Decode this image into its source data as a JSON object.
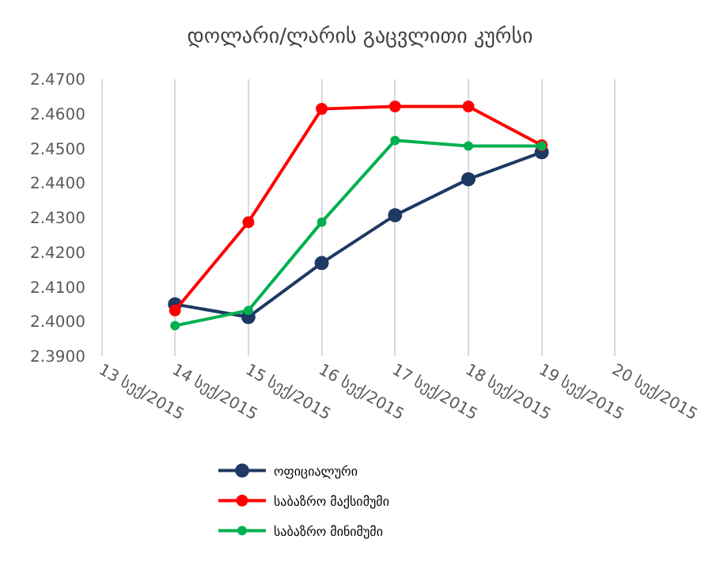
{
  "chart_data": {
    "type": "line",
    "title": "დოლარი/ლარის გაცვლითი კურსი",
    "categories": [
      "13 სექ/2015",
      "14 სექ/2015",
      "15 სექ/2015",
      "16 სექ/2015",
      "17 სექ/2015",
      "18 სექ/2015",
      "19 სექ/2015",
      "20 სექ/2015"
    ],
    "series": [
      {
        "name": "ოფიციალური",
        "color": "#1f3864",
        "values": [
          null,
          2.405,
          2.4013,
          2.4169,
          2.4307,
          2.4411,
          2.4489,
          null
        ]
      },
      {
        "name": "საბაზრო მაქსიმუმი",
        "color": "#ff0000",
        "values": [
          null,
          2.4032,
          2.4287,
          2.4614,
          2.4621,
          2.4621,
          2.4509,
          null
        ]
      },
      {
        "name": "საბაზრო მინიმუმი",
        "color": "#00b050",
        "values": [
          null,
          2.3988,
          2.4032,
          2.4287,
          2.4523,
          2.4507,
          2.4507,
          null
        ]
      }
    ],
    "ylim": [
      2.39,
      2.47
    ],
    "yticks": [
      {
        "value": 2.39,
        "label": "2.3900"
      },
      {
        "value": 2.4,
        "label": "2.4000"
      },
      {
        "value": 2.41,
        "label": "2.4100"
      },
      {
        "value": 2.42,
        "label": "2.4200"
      },
      {
        "value": 2.43,
        "label": "2.4300"
      },
      {
        "value": 2.44,
        "label": "2.4400"
      },
      {
        "value": 2.45,
        "label": "2.4500"
      },
      {
        "value": 2.46,
        "label": "2.4600"
      },
      {
        "value": 2.47,
        "label": "2.4700"
      }
    ],
    "grid": "x",
    "legend": "bottom",
    "marker": "circle",
    "line_style": "solid"
  }
}
